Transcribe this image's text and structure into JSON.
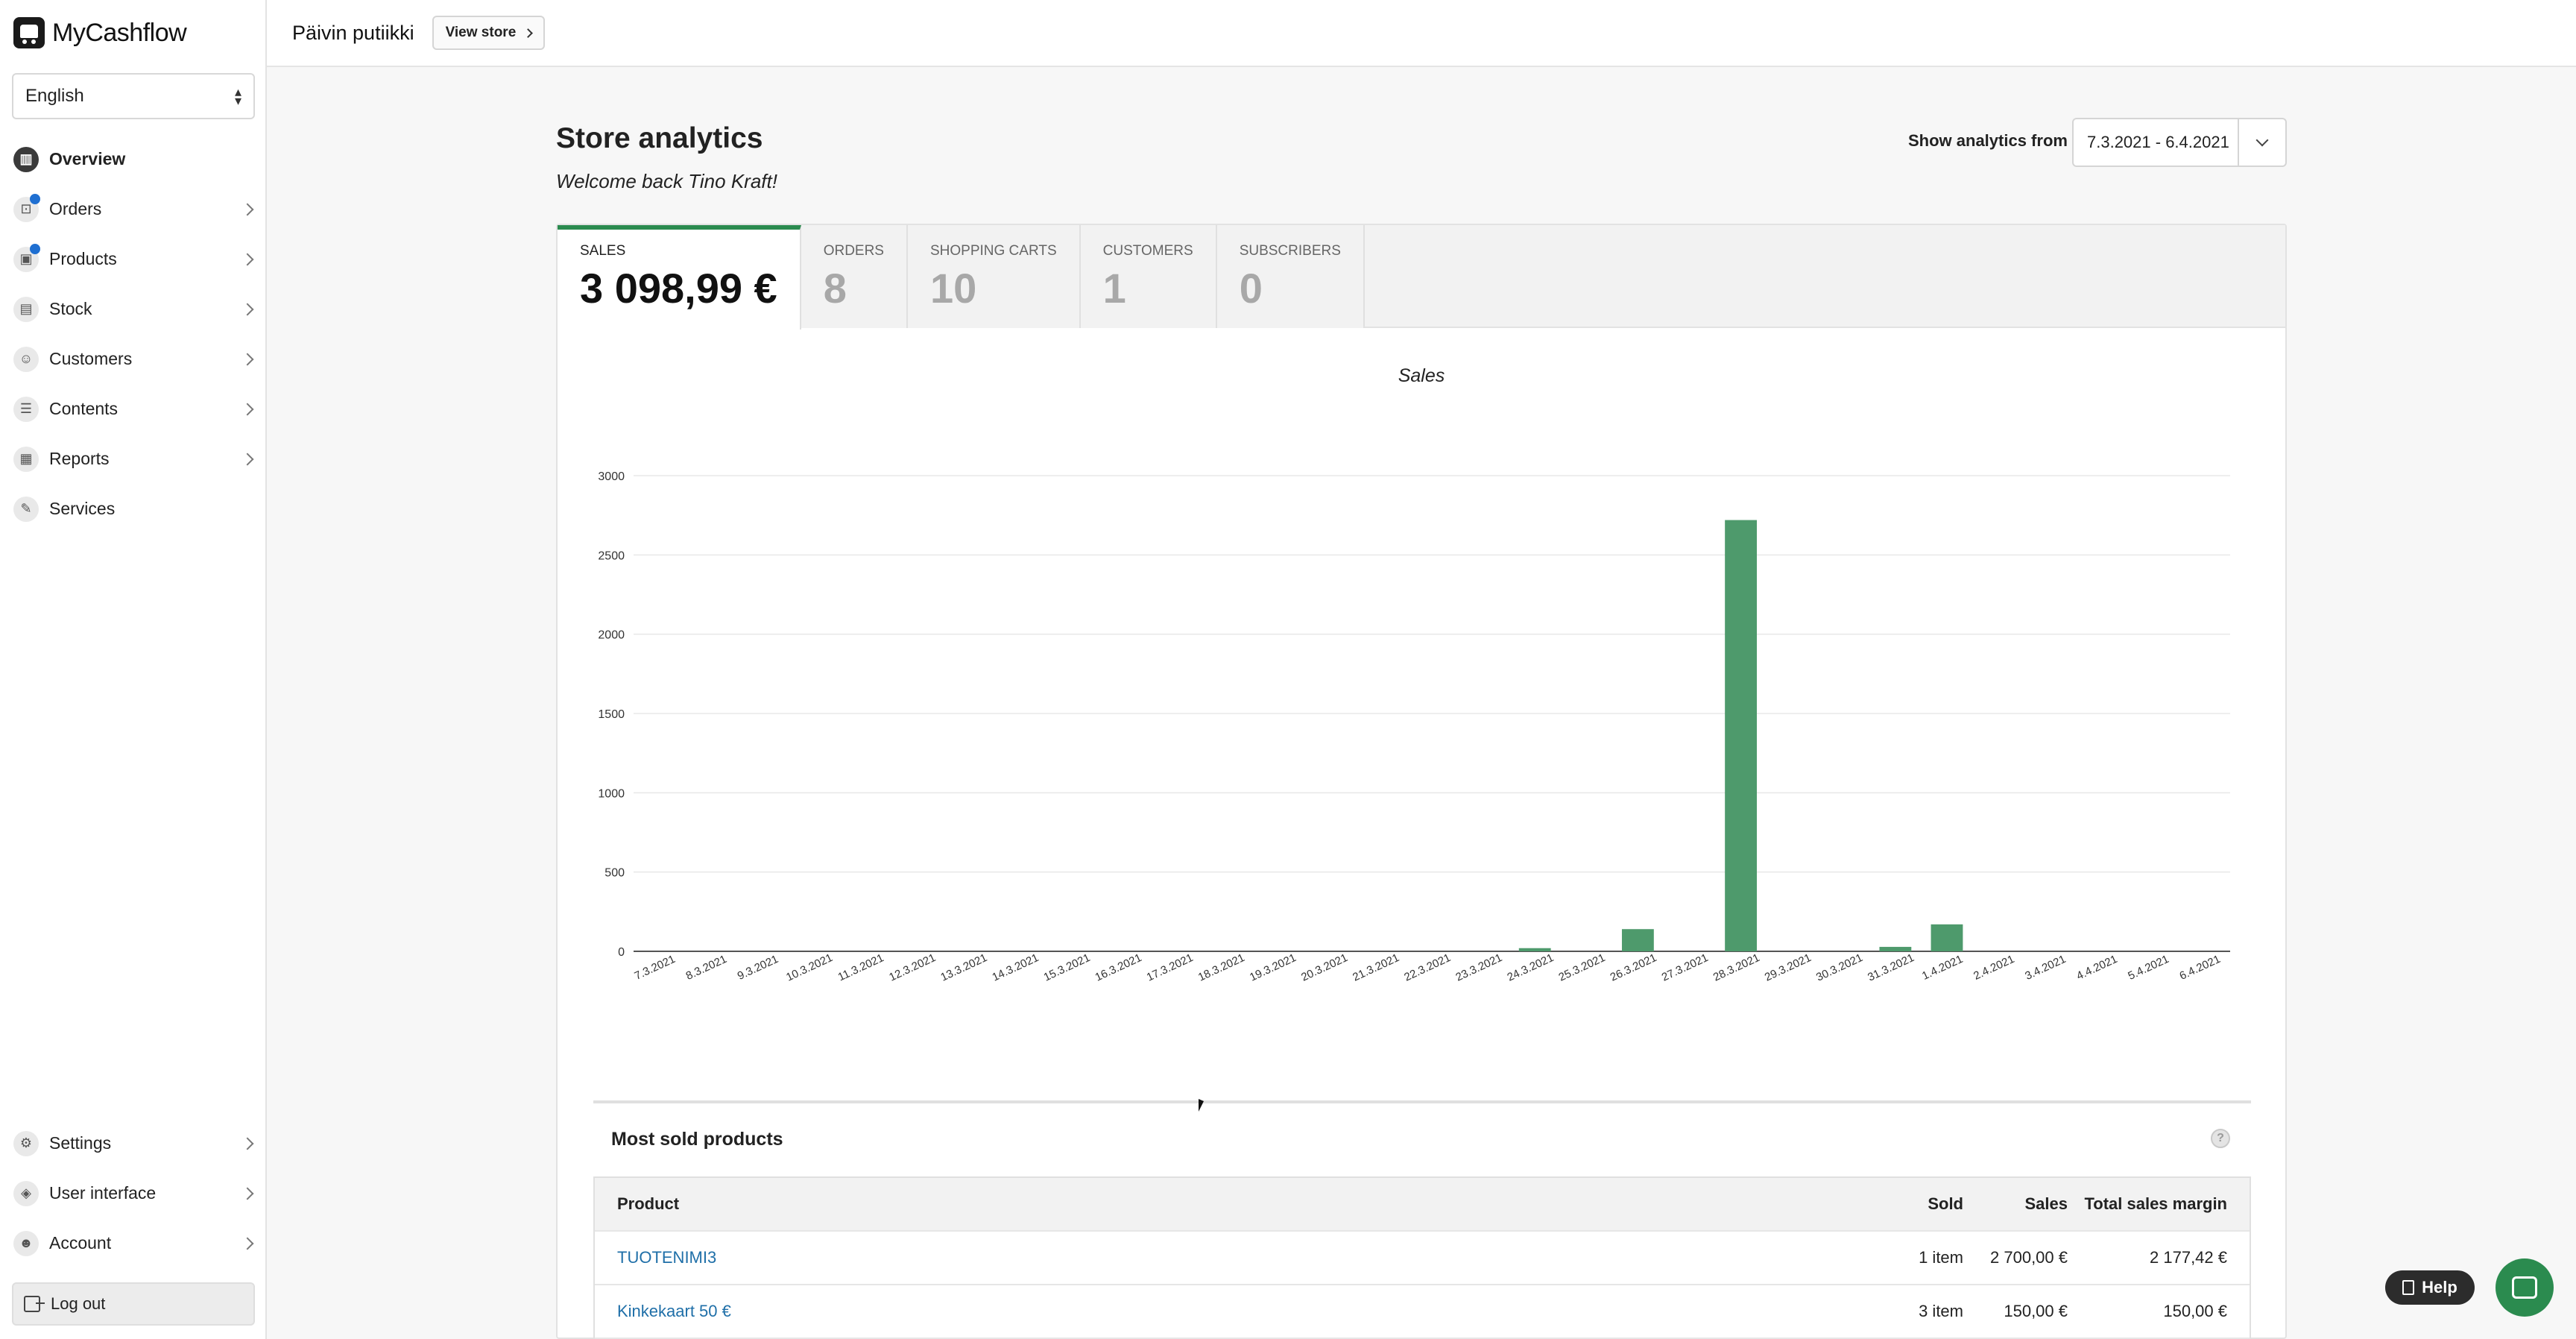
{
  "app": {
    "name": "MyCashflow"
  },
  "sidebar": {
    "language": "English",
    "items": [
      {
        "label": "Overview",
        "icon": "chart-icon",
        "glyph": "▥"
      },
      {
        "label": "Orders",
        "icon": "bag-icon",
        "glyph": "⊡"
      },
      {
        "label": "Products",
        "icon": "box-icon",
        "glyph": "▣"
      },
      {
        "label": "Stock",
        "icon": "stock-icon",
        "glyph": "▤"
      },
      {
        "label": "Customers",
        "icon": "users-icon",
        "glyph": "☺"
      },
      {
        "label": "Contents",
        "icon": "list-icon",
        "glyph": "☰"
      },
      {
        "label": "Reports",
        "icon": "report-icon",
        "glyph": "▦"
      },
      {
        "label": "Services",
        "icon": "services-icon",
        "glyph": "✎"
      }
    ],
    "bottom_items": [
      {
        "label": "Settings",
        "icon": "gear-icon",
        "glyph": "⚙"
      },
      {
        "label": "User interface",
        "icon": "drop-icon",
        "glyph": "◈"
      },
      {
        "label": "Account",
        "icon": "user-icon",
        "glyph": "☻"
      }
    ],
    "logout": "Log out"
  },
  "topbar": {
    "store_name": "Päivin putiikki",
    "view_store": "View store"
  },
  "main": {
    "title": "Store analytics",
    "welcome": "Welcome back Tino Kraft!",
    "range_label": "Show analytics from",
    "range_value": "7.3.2021 - 6.4.2021"
  },
  "tabs": [
    {
      "label": "SALES",
      "value": "3 098,99 €"
    },
    {
      "label": "ORDERS",
      "value": "8"
    },
    {
      "label": "SHOPPING CARTS",
      "value": "10"
    },
    {
      "label": "CUSTOMERS",
      "value": "1"
    },
    {
      "label": "SUBSCRIBERS",
      "value": "0"
    }
  ],
  "chart_data": {
    "type": "bar",
    "title": "Sales",
    "xlabel": "",
    "ylabel": "",
    "ylim": [
      0,
      3000
    ],
    "yticks": [
      0,
      500,
      1000,
      1500,
      2000,
      2500,
      3000
    ],
    "grid": true,
    "color": "#4e9a6c",
    "categories": [
      "7.3.2021",
      "8.3.2021",
      "9.3.2021",
      "10.3.2021",
      "11.3.2021",
      "12.3.2021",
      "13.3.2021",
      "14.3.2021",
      "15.3.2021",
      "16.3.2021",
      "17.3.2021",
      "18.3.2021",
      "19.3.2021",
      "20.3.2021",
      "21.3.2021",
      "22.3.2021",
      "23.3.2021",
      "24.3.2021",
      "25.3.2021",
      "26.3.2021",
      "27.3.2021",
      "28.3.2021",
      "29.3.2021",
      "30.3.2021",
      "31.3.2021",
      "1.4.2021",
      "2.4.2021",
      "3.4.2021",
      "4.4.2021",
      "5.4.2021",
      "6.4.2021"
    ],
    "values": [
      0,
      0,
      0,
      0,
      0,
      0,
      0,
      0,
      0,
      0,
      0,
      0,
      0,
      0,
      0,
      0,
      0,
      20,
      0,
      140,
      0,
      2720,
      0,
      0,
      28,
      170,
      0,
      0,
      0,
      0,
      0
    ]
  },
  "most_sold": {
    "title": "Most sold products",
    "columns": [
      "Product",
      "Sold",
      "Sales",
      "Total sales margin"
    ],
    "rows": [
      {
        "product": "TUOTENIMI3",
        "sold": "1 item",
        "sales": "2 700,00 €",
        "margin": "2 177,42 €"
      },
      {
        "product": "Kinkekaart 50 €",
        "sold": "3 item",
        "sales": "150,00 €",
        "margin": "150,00 €"
      }
    ]
  },
  "help": {
    "label": "Help"
  }
}
